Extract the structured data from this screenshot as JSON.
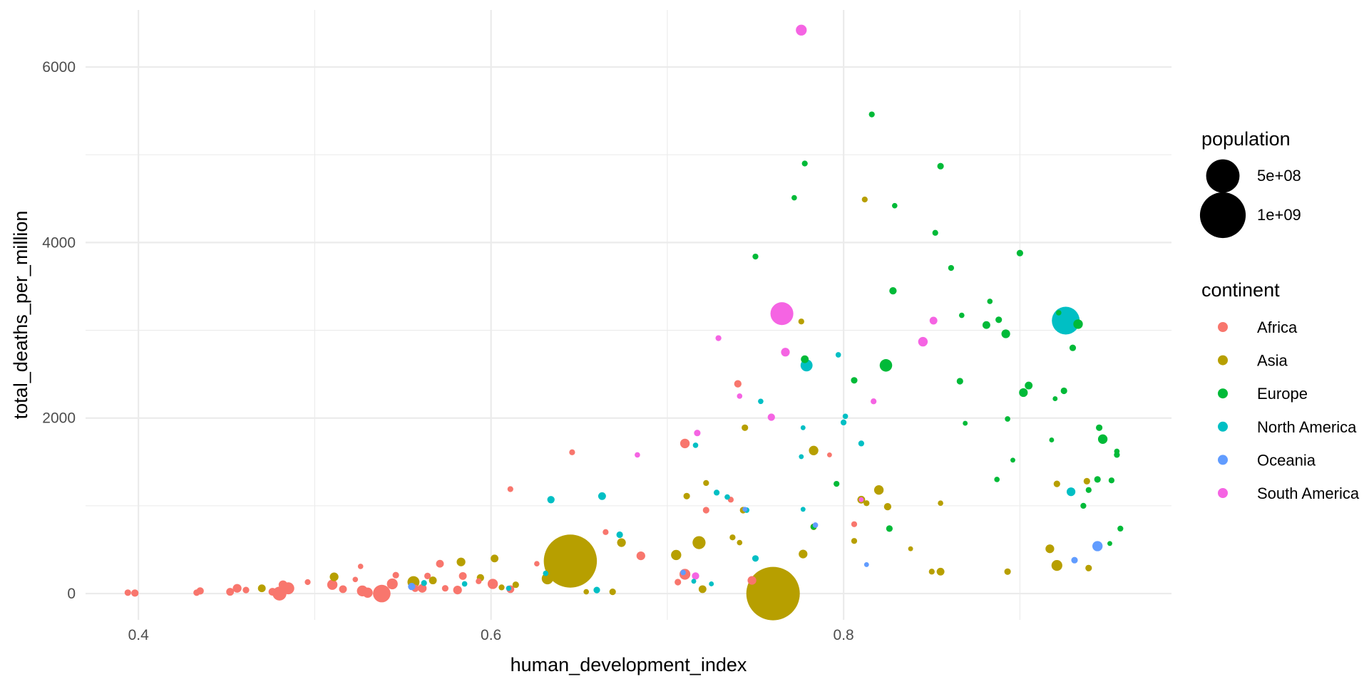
{
  "chart_data": {
    "type": "scatter",
    "xlabel": "human_development_index",
    "ylabel": "total_deaths_per_million",
    "xlim": [
      0.37,
      0.986
    ],
    "ylim": [
      -300,
      6650
    ],
    "x_ticks": [
      0.4,
      0.6,
      0.8
    ],
    "x_tick_labels": [
      "0.4",
      "0.6",
      "0.8"
    ],
    "y_ticks": [
      0,
      2000,
      4000,
      6000
    ],
    "y_tick_labels": [
      "0",
      "2000",
      "4000",
      "6000"
    ],
    "grid": true,
    "legend_position": "right",
    "size_legend": {
      "title": "population",
      "entries": [
        {
          "label": "5e+08",
          "value": 500000000
        },
        {
          "label": "1e+09",
          "value": 1000000000
        }
      ]
    },
    "color_legend": {
      "title": "continent",
      "entries": [
        {
          "name": "Africa",
          "color": "#F8766D"
        },
        {
          "name": "Asia",
          "color": "#B79F00"
        },
        {
          "name": "Europe",
          "color": "#00BA38"
        },
        {
          "name": "North America",
          "color": "#00BFC4"
        },
        {
          "name": "Oceania",
          "color": "#619CFF"
        },
        {
          "name": "South America",
          "color": "#F564E3"
        }
      ]
    },
    "series": [
      {
        "name": "Africa",
        "points": [
          [
            0.394,
            10,
            5000000
          ],
          [
            0.398,
            5,
            8000000
          ],
          [
            0.433,
            10,
            5000000
          ],
          [
            0.435,
            30,
            8000000
          ],
          [
            0.452,
            20,
            10000000
          ],
          [
            0.456,
            60,
            15000000
          ],
          [
            0.461,
            40,
            5000000
          ],
          [
            0.476,
            20,
            10000000
          ],
          [
            0.48,
            0,
            60000000
          ],
          [
            0.482,
            100,
            15000000
          ],
          [
            0.485,
            60,
            40000000
          ],
          [
            0.496,
            130,
            3000000
          ],
          [
            0.51,
            100,
            25000000
          ],
          [
            0.516,
            50,
            10000000
          ],
          [
            0.523,
            160,
            2000000
          ],
          [
            0.526,
            310,
            2000000
          ],
          [
            0.527,
            30,
            30000000
          ],
          [
            0.53,
            10,
            25000000
          ],
          [
            0.538,
            0,
            110000000
          ],
          [
            0.544,
            110,
            30000000
          ],
          [
            0.546,
            210,
            5000000
          ],
          [
            0.557,
            60,
            8000000
          ],
          [
            0.561,
            60,
            15000000
          ],
          [
            0.564,
            200,
            5000000
          ],
          [
            0.571,
            340,
            10000000
          ],
          [
            0.574,
            60,
            5000000
          ],
          [
            0.581,
            40,
            15000000
          ],
          [
            0.584,
            200,
            10000000
          ],
          [
            0.593,
            140,
            3000000
          ],
          [
            0.601,
            110,
            25000000
          ],
          [
            0.611,
            50,
            10000000
          ],
          [
            0.611,
            1190,
            3000000
          ],
          [
            0.626,
            340,
            2000000
          ],
          [
            0.646,
            1610,
            3000000
          ],
          [
            0.665,
            700,
            3000000
          ],
          [
            0.685,
            430,
            15000000
          ],
          [
            0.71,
            1710,
            20000000
          ],
          [
            0.706,
            130,
            5000000
          ],
          [
            0.71,
            220,
            30000000
          ],
          [
            0.722,
            950,
            5000000
          ],
          [
            0.736,
            1070,
            3000000
          ],
          [
            0.74,
            2390,
            8000000
          ],
          [
            0.748,
            150,
            15000000
          ],
          [
            0.806,
            790,
            3000000
          ],
          [
            0.792,
            1580,
            1000000
          ]
        ]
      },
      {
        "name": "Asia",
        "points": [
          [
            0.47,
            60,
            10000000
          ],
          [
            0.511,
            190,
            15000000
          ],
          [
            0.556,
            130,
            40000000
          ],
          [
            0.567,
            150,
            10000000
          ],
          [
            0.583,
            360,
            15000000
          ],
          [
            0.594,
            180,
            8000000
          ],
          [
            0.602,
            400,
            10000000
          ],
          [
            0.606,
            70,
            3000000
          ],
          [
            0.614,
            100,
            5000000
          ],
          [
            0.632,
            170,
            35000000
          ],
          [
            0.645,
            370,
            1380000000
          ],
          [
            0.654,
            20,
            2000000
          ],
          [
            0.669,
            20,
            5000000
          ],
          [
            0.674,
            580,
            15000000
          ],
          [
            0.705,
            440,
            25000000
          ],
          [
            0.711,
            1110,
            5000000
          ],
          [
            0.722,
            1260,
            3000000
          ],
          [
            0.718,
            580,
            50000000
          ],
          [
            0.72,
            50,
            10000000
          ],
          [
            0.744,
            1890,
            5000000
          ],
          [
            0.737,
            640,
            3000000
          ],
          [
            0.741,
            580,
            2000000
          ],
          [
            0.743,
            950,
            5000000
          ],
          [
            0.76,
            0,
            1400000000
          ],
          [
            0.776,
            3100,
            3000000
          ],
          [
            0.777,
            450,
            15000000
          ],
          [
            0.783,
            760,
            5000000
          ],
          [
            0.783,
            1630,
            20000000
          ],
          [
            0.806,
            600,
            3000000
          ],
          [
            0.81,
            1070,
            10000000
          ],
          [
            0.812,
            4490,
            3000000
          ],
          [
            0.813,
            1030,
            3000000
          ],
          [
            0.82,
            1180,
            20000000
          ],
          [
            0.825,
            990,
            8000000
          ],
          [
            0.838,
            510,
            1000000
          ],
          [
            0.85,
            250,
            3000000
          ],
          [
            0.855,
            1030,
            2000000
          ],
          [
            0.855,
            250,
            10000000
          ],
          [
            0.893,
            250,
            5000000
          ],
          [
            0.917,
            510,
            15000000
          ],
          [
            0.921,
            320,
            30000000
          ],
          [
            0.921,
            1250,
            5000000
          ],
          [
            0.938,
            1280,
            5000000
          ],
          [
            0.939,
            290,
            5000000
          ]
        ]
      },
      {
        "name": "Europe",
        "points": [
          [
            0.75,
            3840,
            3000000
          ],
          [
            0.772,
            4510,
            2000000
          ],
          [
            0.778,
            4900,
            3000000
          ],
          [
            0.778,
            2670,
            10000000
          ],
          [
            0.783,
            760,
            3000000
          ],
          [
            0.796,
            1250,
            3000000
          ],
          [
            0.806,
            2430,
            5000000
          ],
          [
            0.816,
            5460,
            3000000
          ],
          [
            0.824,
            2600,
            45000000
          ],
          [
            0.826,
            740,
            5000000
          ],
          [
            0.828,
            3450,
            8000000
          ],
          [
            0.829,
            4420,
            2000000
          ],
          [
            0.852,
            4110,
            3000000
          ],
          [
            0.855,
            4870,
            5000000
          ],
          [
            0.861,
            3710,
            3000000
          ],
          [
            0.866,
            2420,
            5000000
          ],
          [
            0.867,
            3170,
            2000000
          ],
          [
            0.869,
            1940,
            1000000
          ],
          [
            0.881,
            3060,
            10000000
          ],
          [
            0.883,
            3330,
            2000000
          ],
          [
            0.887,
            1300,
            2000000
          ],
          [
            0.888,
            3120,
            5000000
          ],
          [
            0.892,
            2960,
            15000000
          ],
          [
            0.893,
            1990,
            2000000
          ],
          [
            0.896,
            1520,
            1000000
          ],
          [
            0.9,
            3880,
            5000000
          ],
          [
            0.902,
            2290,
            15000000
          ],
          [
            0.905,
            2370,
            10000000
          ],
          [
            0.92,
            2220,
            1000000
          ],
          [
            0.922,
            3200,
            2000000
          ],
          [
            0.925,
            2310,
            5000000
          ],
          [
            0.933,
            3070,
            20000000
          ],
          [
            0.93,
            2800,
            5000000
          ],
          [
            0.936,
            1000,
            3000000
          ],
          [
            0.939,
            1180,
            3000000
          ],
          [
            0.944,
            1300,
            5000000
          ],
          [
            0.945,
            1890,
            5000000
          ],
          [
            0.947,
            1760,
            20000000
          ],
          [
            0.951,
            570,
            1000000
          ],
          [
            0.952,
            1290,
            3000000
          ],
          [
            0.955,
            1580,
            3000000
          ],
          [
            0.955,
            1620,
            2000000
          ],
          [
            0.957,
            740,
            3000000
          ],
          [
            0.918,
            1750,
            1000000
          ]
        ]
      },
      {
        "name": "North America",
        "points": [
          [
            0.562,
            120,
            3000000
          ],
          [
            0.585,
            110,
            2000000
          ],
          [
            0.61,
            60,
            1000000
          ],
          [
            0.631,
            230,
            2000000
          ],
          [
            0.634,
            1070,
            8000000
          ],
          [
            0.66,
            40,
            5000000
          ],
          [
            0.663,
            1110,
            10000000
          ],
          [
            0.673,
            670,
            5000000
          ],
          [
            0.715,
            140,
            1000000
          ],
          [
            0.716,
            1690,
            2000000
          ],
          [
            0.725,
            110,
            1000000
          ],
          [
            0.728,
            1150,
            3000000
          ],
          [
            0.734,
            1100,
            2000000
          ],
          [
            0.745,
            950,
            2000000
          ],
          [
            0.753,
            2190,
            2000000
          ],
          [
            0.75,
            400,
            5000000
          ],
          [
            0.776,
            1560,
            1000000
          ],
          [
            0.777,
            1890,
            1000000
          ],
          [
            0.777,
            960,
            1000000
          ],
          [
            0.779,
            2600,
            40000000
          ],
          [
            0.797,
            2720,
            2000000
          ],
          [
            0.8,
            1950,
            3000000
          ],
          [
            0.801,
            2020,
            2000000
          ],
          [
            0.81,
            1710,
            3000000
          ],
          [
            0.926,
            3110,
            330000000
          ],
          [
            0.929,
            1160,
            15000000
          ]
        ]
      },
      {
        "name": "Oceania",
        "points": [
          [
            0.555,
            80,
            8000000
          ],
          [
            0.61,
            60,
            2000000
          ],
          [
            0.709,
            240,
            2000000
          ],
          [
            0.744,
            960,
            1000000
          ],
          [
            0.784,
            780,
            2000000
          ],
          [
            0.813,
            330,
            1000000
          ],
          [
            0.931,
            380,
            5000000
          ],
          [
            0.944,
            540,
            25000000
          ]
        ]
      },
      {
        "name": "South America",
        "points": [
          [
            0.683,
            1580,
            2000000
          ],
          [
            0.716,
            200,
            8000000
          ],
          [
            0.717,
            1830,
            5000000
          ],
          [
            0.729,
            2910,
            3000000
          ],
          [
            0.741,
            2250,
            2000000
          ],
          [
            0.759,
            2010,
            8000000
          ],
          [
            0.765,
            3190,
            210000000
          ],
          [
            0.767,
            2750,
            15000000
          ],
          [
            0.776,
            6420,
            30000000
          ],
          [
            0.81,
            1070,
            1000000
          ],
          [
            0.817,
            2190,
            3000000
          ],
          [
            0.845,
            2870,
            20000000
          ],
          [
            0.851,
            3110,
            10000000
          ]
        ]
      }
    ]
  }
}
